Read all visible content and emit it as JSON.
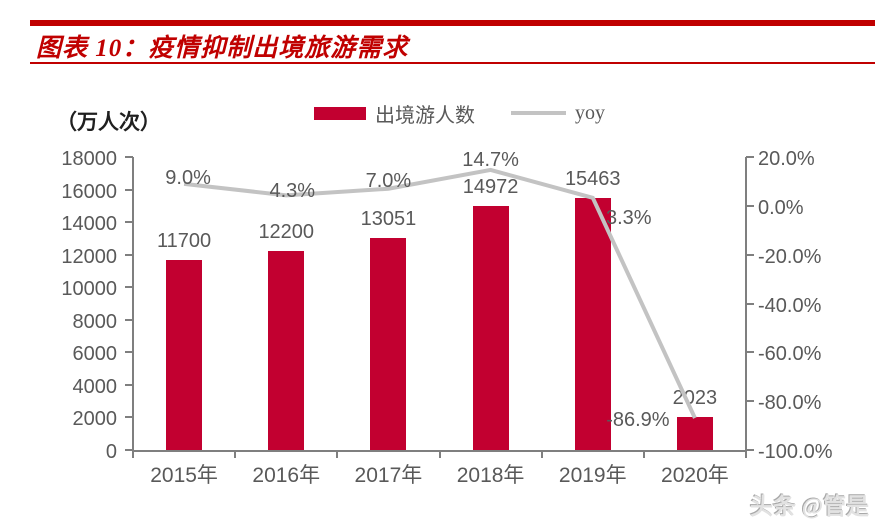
{
  "header": {
    "title": "图表 10：疫情抑制出境旅游需求",
    "accent_color": "#c00000"
  },
  "footer": {
    "watermark": "头条 @管是"
  },
  "chart_data": {
    "type": "bar",
    "subtype": "bar-with-line-overlay",
    "categories": [
      "2015年",
      "2016年",
      "2017年",
      "2018年",
      "2019年",
      "2020年"
    ],
    "series": [
      {
        "name": "出境游人数",
        "type": "bar",
        "axis": "left",
        "color": "#c20030",
        "values": [
          11700,
          12200,
          13051,
          14972,
          15463,
          2023
        ],
        "labels": [
          "11700",
          "12200",
          "13051",
          "14972",
          "15463",
          "2023"
        ]
      },
      {
        "name": "yoy",
        "type": "line",
        "axis": "right",
        "color": "#c3c3c3",
        "values": [
          9.0,
          4.3,
          7.0,
          14.7,
          3.3,
          -86.9
        ],
        "labels": [
          "9.0%",
          "4.3%",
          "7.0%",
          "14.7%",
          "3.3%",
          "-86.9%"
        ],
        "label_offsets": [
          [
            4,
            0
          ],
          [
            6,
            2
          ],
          [
            0,
            -2
          ],
          [
            0,
            -4
          ],
          [
            36,
            26
          ],
          [
            -57,
            8
          ]
        ]
      }
    ],
    "left_axis": {
      "title": "（万人次）",
      "min": 0,
      "max": 18000,
      "tick_labels": [
        "18000",
        "16000",
        "14000",
        "12000",
        "10000",
        "8000",
        "6000",
        "4000",
        "2000",
        "0"
      ]
    },
    "right_axis": {
      "min": -100,
      "max": 20,
      "tick_labels": [
        "20.0%",
        "0.0%",
        "-20.0%",
        "-40.0%",
        "-60.0%",
        "-80.0%",
        "-100.0%"
      ]
    },
    "legend_position": "top-center",
    "grid": false,
    "axis_color": "#7f7f7f",
    "label_color": "#595959"
  }
}
